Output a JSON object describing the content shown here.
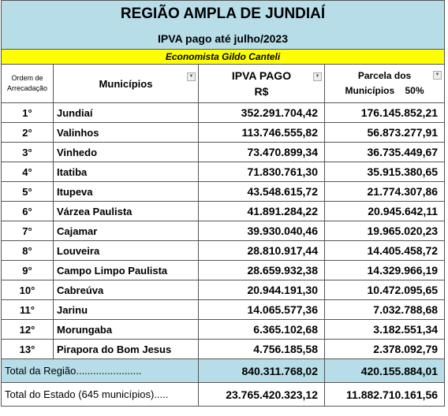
{
  "header": {
    "title": "REGIÃO AMPLA DE JUNDIAÍ",
    "subtitle": "IPVA pago até julho/2023",
    "author": "Economista Gildo Canteli"
  },
  "table": {
    "columns": [
      "Ordem de Arrecadação",
      "Municípios",
      "IPVA PAGO",
      "R$",
      "Parcela dos",
      "Municípios    50%"
    ],
    "rows": [
      [
        "1°",
        "Jundiaí",
        "352.291.704,42",
        "176.145.852,21"
      ],
      [
        "2°",
        "Valinhos",
        "113.746.555,82",
        "56.873.277,91"
      ],
      [
        "3°",
        "Vinhedo",
        "73.470.899,34",
        "36.735.449,67"
      ],
      [
        "4°",
        "Itatiba",
        "71.830.761,30",
        "35.915.380,65"
      ],
      [
        "5°",
        "Itupeva",
        "43.548.615,72",
        "21.774.307,86"
      ],
      [
        "6°",
        "Várzea Paulista",
        "41.891.284,22",
        "20.945.642,11"
      ],
      [
        "7°",
        "Cajamar",
        "39.930.040,46",
        "19.965.020,23"
      ],
      [
        "8°",
        "Louveira",
        "28.810.917,44",
        "14.405.458,72"
      ],
      [
        "9°",
        "Campo Limpo Paulista",
        "28.659.932,38",
        "14.329.966,19"
      ],
      [
        "10°",
        "Cabreúva",
        "20.944.191,30",
        "10.472.095,65"
      ],
      [
        "11°",
        "Jarinu",
        "14.065.577,36",
        "7.032.788,68"
      ],
      [
        "12°",
        "Morungaba",
        "6.365.102,68",
        "3.182.551,34"
      ],
      [
        "13°",
        "Pirapora do Bom Jesus",
        "4.756.185,58",
        "2.378.092,79"
      ]
    ],
    "totals": [
      [
        "Total da Região.......................",
        "840.311.768,02",
        "420.155.884,01"
      ],
      [
        "Total do Estado (645 municípios).....",
        "23.765.420.323,12",
        "11.882.710.161,56"
      ]
    ]
  }
}
